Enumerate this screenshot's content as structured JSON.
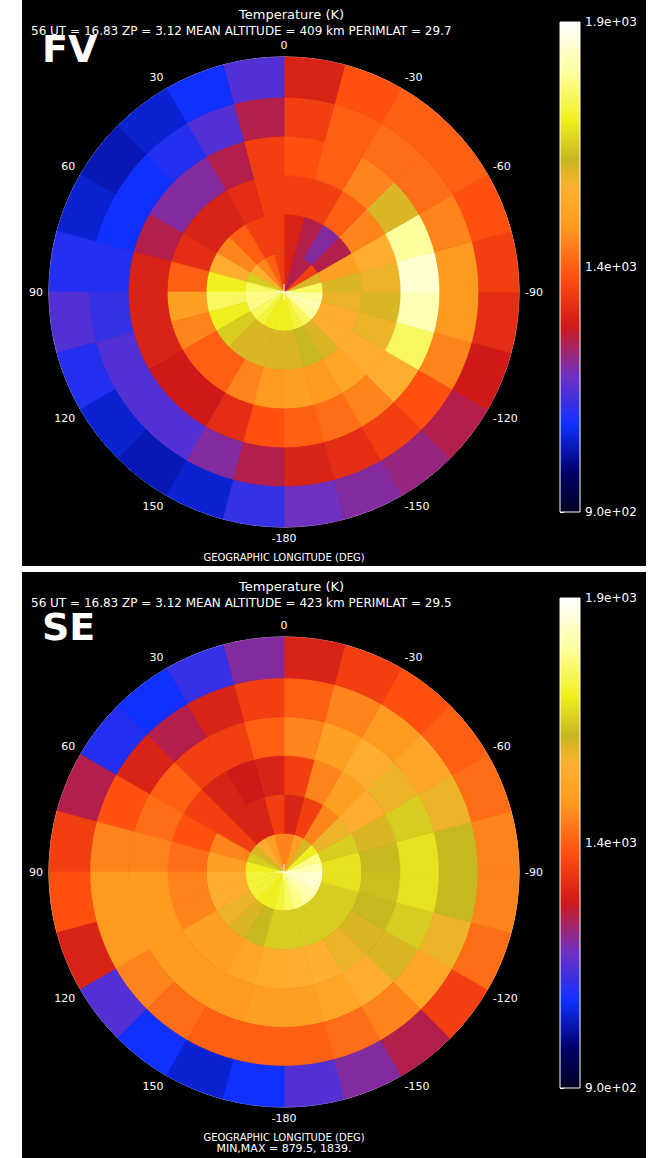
{
  "chart_data": [
    {
      "type": "polar_heatmap",
      "panel": "FV",
      "title": "Temperature (K)",
      "subtitle": "56 UT = 16.83 ZP = 3.12 MEAN ALTITUDE = 409 km PERIMLAT = 29.7",
      "x_label": "GEOGRAPHIC LONGITUDE (DEG)",
      "xlim": [
        -180,
        180
      ],
      "xticks": [
        0,
        -30,
        -60,
        -90,
        -120,
        -150,
        -180,
        150,
        120,
        90,
        60,
        30
      ],
      "ylim": [
        29.7,
        90
      ],
      "tick_labels": "x",
      "lon_bins": [
        -180,
        -165,
        -150,
        -135,
        -120,
        -105,
        -90,
        -75,
        -60,
        -45,
        -30,
        -15,
        0,
        15,
        30,
        45,
        60,
        75,
        90,
        105,
        120,
        135,
        150,
        165,
        180
      ],
      "lat_bins": [
        90,
        80,
        70,
        60,
        50,
        40,
        29.7
      ],
      "cells": [
        [
          1700,
          1720,
          1750,
          1800,
          1820,
          1800,
          1750,
          1600,
          1350,
          1250,
          1250,
          1300,
          1350,
          1400,
          1450,
          1550,
          1650,
          1750,
          1780,
          1780,
          1750,
          1720,
          1700,
          1700
        ],
        [
          1600,
          1620,
          1600,
          1550,
          1550,
          1580,
          1600,
          1500,
          1250,
          1200,
          1250,
          1300,
          1350,
          1350,
          1400,
          1450,
          1550,
          1700,
          1750,
          1700,
          1650,
          1600,
          1600,
          1600
        ],
        [
          1500,
          1480,
          1520,
          1550,
          1580,
          1600,
          1580,
          1550,
          1450,
          1400,
          1350,
          1350,
          1350,
          1320,
          1300,
          1300,
          1320,
          1400,
          1500,
          1450,
          1400,
          1400,
          1450,
          1480
        ],
        [
          1400,
          1420,
          1450,
          1550,
          1750,
          1820,
          1850,
          1800,
          1600,
          1450,
          1400,
          1380,
          1350,
          1250,
          1200,
          1200,
          1250,
          1300,
          1300,
          1300,
          1280,
          1280,
          1320,
          1380
        ],
        [
          1300,
          1320,
          1350,
          1380,
          1450,
          1480,
          1480,
          1450,
          1420,
          1420,
          1400,
          1350,
          1250,
          1150,
          1100,
          1080,
          1080,
          1100,
          1120,
          1150,
          1150,
          1150,
          1200,
          1250
        ],
        [
          1180,
          1200,
          1220,
          1250,
          1280,
          1320,
          1350,
          1380,
          1400,
          1400,
          1380,
          1300,
          1150,
          1080,
          1050,
          1030,
          1050,
          1100,
          1150,
          1100,
          1050,
          1030,
          1050,
          1120
        ]
      ],
      "colorbar": {
        "range": [
          900,
          1900
        ],
        "ticks": [
          {
            "value": 1900,
            "label": "1.9e+03"
          },
          {
            "value": 1400,
            "label": "1.4e+03"
          },
          {
            "value": 900,
            "label": "9.0e+02"
          }
        ]
      }
    },
    {
      "type": "polar_heatmap",
      "panel": "SE",
      "title": "Temperature (K)",
      "subtitle": "56 UT = 16.83 ZP = 3.12 MEAN ALTITUDE = 423 km PERIMLAT = 29.5",
      "x_label": "GEOGRAPHIC LONGITUDE (DEG)",
      "annotation": "MIN,MAX = 879.5, 1839.",
      "xlim": [
        -180,
        180
      ],
      "xticks": [
        0,
        -30,
        -60,
        -90,
        -120,
        -150,
        -180,
        150,
        120,
        90,
        60,
        30
      ],
      "ylim": [
        29.5,
        90
      ],
      "tick_labels": "x",
      "lon_bins": [
        -180,
        -165,
        -150,
        -135,
        -120,
        -105,
        -90,
        -75,
        -60,
        -45,
        -30,
        -15,
        0,
        15,
        30,
        45,
        60,
        75,
        90,
        105,
        120,
        135,
        150,
        165,
        180
      ],
      "lat_bins": [
        90,
        80,
        70,
        60,
        50,
        40,
        29.5
      ],
      "cells": [
        [
          1750,
          1780,
          1800,
          1820,
          1850,
          1850,
          1820,
          1780,
          1700,
          1600,
          1500,
          1450,
          1450,
          1500,
          1550,
          1600,
          1650,
          1700,
          1720,
          1720,
          1720,
          1700,
          1700,
          1720
        ],
        [
          1650,
          1650,
          1650,
          1650,
          1650,
          1680,
          1680,
          1650,
          1580,
          1450,
          1350,
          1300,
          1350,
          1300,
          1300,
          1350,
          1450,
          1500,
          1550,
          1550,
          1580,
          1600,
          1620,
          1650
        ],
        [
          1550,
          1560,
          1580,
          1600,
          1620,
          1630,
          1620,
          1600,
          1550,
          1500,
          1450,
          1350,
          1300,
          1280,
          1300,
          1350,
          1380,
          1420,
          1450,
          1450,
          1500,
          1500,
          1520,
          1540
        ],
        [
          1500,
          1520,
          1550,
          1600,
          1650,
          1680,
          1680,
          1650,
          1580,
          1550,
          1500,
          1450,
          1400,
          1350,
          1350,
          1400,
          1420,
          1450,
          1480,
          1480,
          1480,
          1480,
          1480,
          1500
        ],
        [
          1400,
          1420,
          1450,
          1520,
          1580,
          1620,
          1620,
          1580,
          1520,
          1480,
          1450,
          1400,
          1350,
          1300,
          1250,
          1300,
          1380,
          1450,
          1480,
          1480,
          1450,
          1420,
          1400,
          1400
        ],
        [
          1150,
          1200,
          1250,
          1350,
          1420,
          1450,
          1450,
          1420,
          1400,
          1380,
          1350,
          1300,
          1200,
          1120,
          1080,
          1100,
          1250,
          1350,
          1380,
          1300,
          1150,
          1080,
          1050,
          1080
        ]
      ],
      "colorbar": {
        "range": [
          900,
          1900
        ],
        "ticks": [
          {
            "value": 1900,
            "label": "1.9e+03"
          },
          {
            "value": 1400,
            "label": "1.4e+03"
          },
          {
            "value": 900,
            "label": "9.0e+02"
          }
        ]
      }
    }
  ]
}
